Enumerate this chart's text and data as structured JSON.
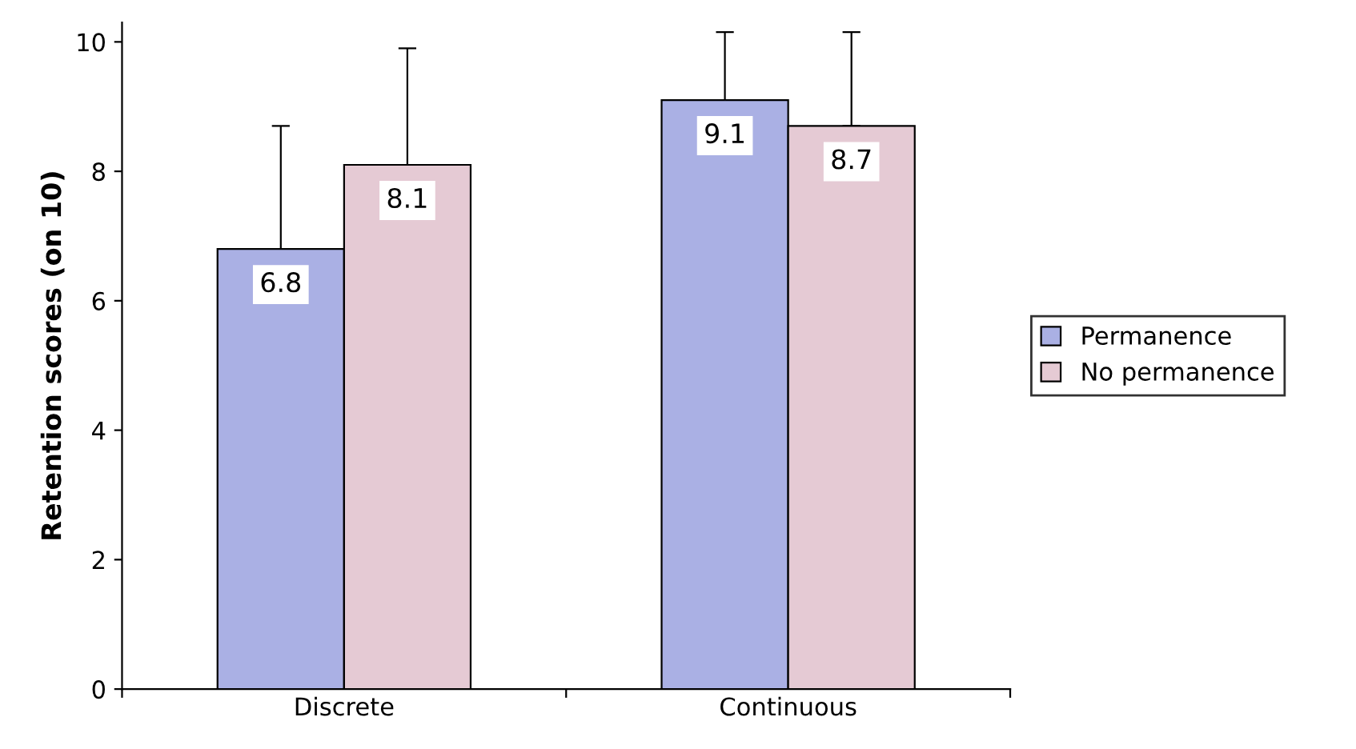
{
  "chart_data": {
    "type": "bar",
    "ylabel": "Retention scores (on 10)",
    "categories": [
      "Discrete",
      "Continuous"
    ],
    "series": [
      {
        "name": "Permanence",
        "color": "#aab0e4",
        "values": [
          6.8,
          9.1
        ],
        "errors": [
          [
            6.8,
            8.7
          ],
          [
            9.1,
            10.15
          ]
        ]
      },
      {
        "name": "No permanence",
        "color": "#e5cad4",
        "values": [
          8.1,
          8.7
        ],
        "errors": [
          [
            8.1,
            9.9
          ],
          [
            8.7,
            10.15
          ]
        ]
      }
    ],
    "ylim": [
      0,
      10.3
    ],
    "yticks": [
      0,
      2,
      4,
      6,
      8,
      10
    ],
    "data_labels": true,
    "legend": "right",
    "grid": false
  }
}
